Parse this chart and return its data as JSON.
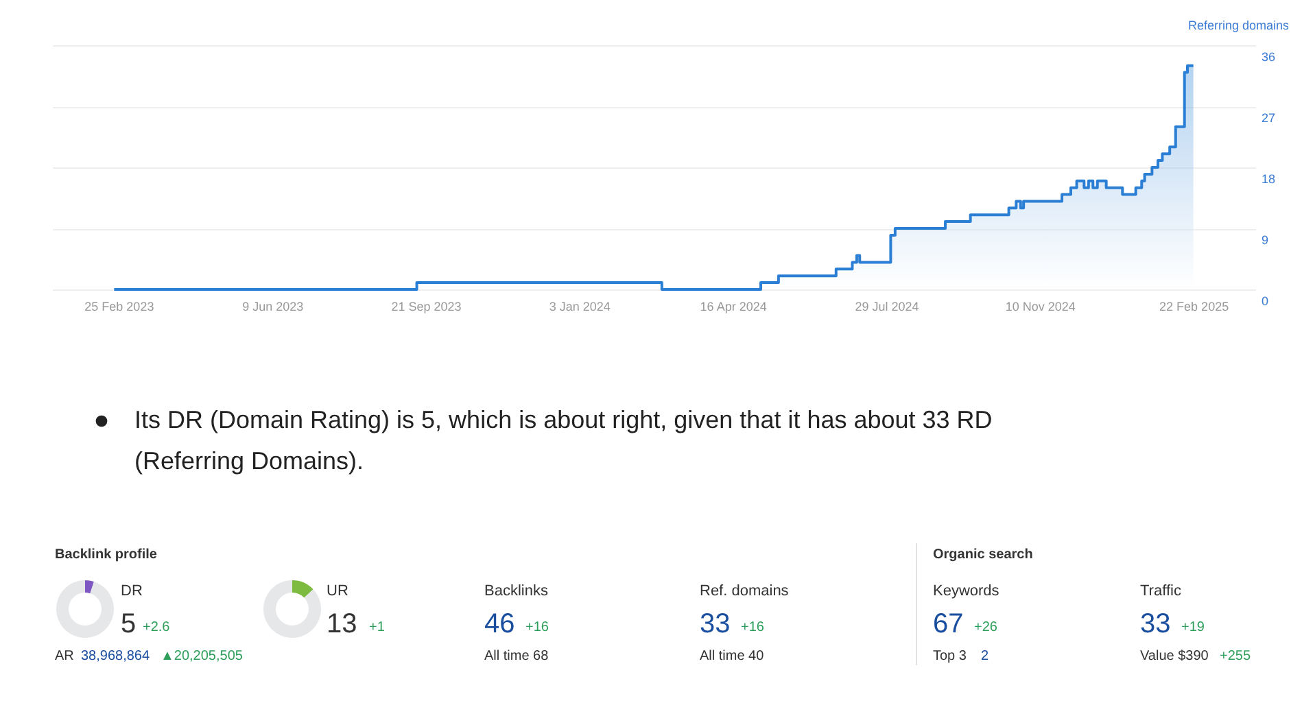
{
  "chart_data": [
    {
      "type": "area",
      "ylabel": "Referring domains",
      "x": [
        "2023-02-22",
        "2023-09-15",
        "2024-02-28",
        "2024-05-05",
        "2024-05-17",
        "2024-06-25",
        "2024-07-06",
        "2024-07-09",
        "2024-07-11",
        "2024-08-01",
        "2024-08-04",
        "2024-09-07",
        "2024-09-24",
        "2024-10-20",
        "2024-10-25",
        "2024-10-28",
        "2024-10-30",
        "2024-11-25",
        "2024-12-01",
        "2024-12-05",
        "2024-12-10",
        "2024-12-13",
        "2024-12-16",
        "2024-12-19",
        "2024-12-25",
        "2025-01-05",
        "2025-01-14",
        "2025-01-18",
        "2025-01-20",
        "2025-01-25",
        "2025-01-29",
        "2025-02-01",
        "2025-02-06",
        "2025-02-10",
        "2025-02-16",
        "2025-02-18",
        "2025-02-22"
      ],
      "series": [
        {
          "color": "#2a7fd4",
          "values": [
            0,
            1,
            0,
            1,
            2,
            3,
            4,
            5,
            4,
            8,
            9,
            10,
            11,
            12,
            13,
            12,
            13,
            14,
            15,
            16,
            15,
            16,
            15,
            16,
            15,
            14,
            15,
            16,
            17,
            18,
            19,
            20,
            21,
            24,
            32,
            33,
            33
          ]
        }
      ],
      "xlim": [
        "2023-01-11",
        "2025-04-05"
      ],
      "xticks": [
        {
          "value": "2023-02-25",
          "label": "25 Feb 2023"
        },
        {
          "value": "2023-06-09",
          "label": "9 Jun 2023"
        },
        {
          "value": "2023-09-21",
          "label": "21 Sep 2023"
        },
        {
          "value": "2024-01-03",
          "label": "3 Jan 2024"
        },
        {
          "value": "2024-04-16",
          "label": "16 Apr 2024"
        },
        {
          "value": "2024-07-29",
          "label": "29 Jul 2024"
        },
        {
          "value": "2024-11-10",
          "label": "10 Nov 2024"
        },
        {
          "value": "2025-02-22",
          "label": "22 Feb 2025"
        }
      ],
      "ylim": [
        0,
        36
      ],
      "yticks": [
        0,
        9,
        18,
        27,
        36
      ],
      "grid": "y",
      "annotations": [
        "Its DR (Domain Rating) is 5, which is about right, given that it has about 33 RD (Referring Domains)."
      ]
    },
    {
      "type": "donut",
      "title": "DR",
      "categories": [
        null,
        null
      ],
      "values": [
        5,
        95
      ],
      "colors": [
        "#7e57c2",
        "#e6e7e9"
      ],
      "annotations": [
        "5",
        "+2.6",
        "AR",
        "38,968,864",
        "▲20,205,505"
      ]
    },
    {
      "type": "donut",
      "title": "UR",
      "categories": [
        null,
        null
      ],
      "values": [
        13,
        87
      ],
      "colors": [
        "#7cbb3f",
        "#e6e7e9"
      ],
      "annotations": [
        "13",
        "+1"
      ]
    },
    {
      "type": "other",
      "title": "Backlink profile",
      "annotations": [
        "Backlinks",
        "46",
        "+16",
        "All time 68",
        "Ref. domains",
        "33",
        "+16",
        "All time 40",
        "Organic search",
        "Keywords",
        "67",
        "+26",
        "Top 3",
        "2",
        "Traffic",
        "33",
        "+19",
        "Value $390",
        "+255"
      ]
    }
  ]
}
